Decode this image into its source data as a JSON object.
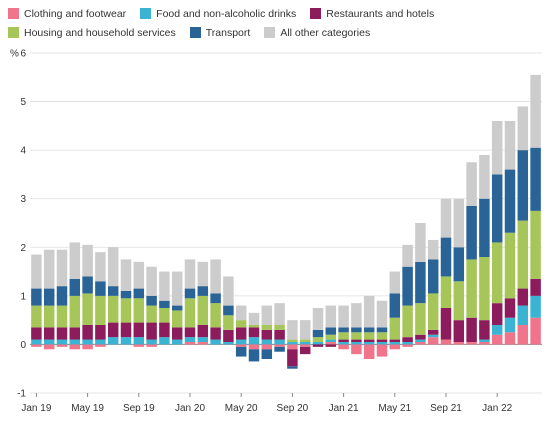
{
  "chart_data": {
    "type": "bar",
    "stacked": true,
    "ylabel": "%",
    "ylim": [
      -1,
      6
    ],
    "yticks": [
      "-1",
      "0",
      "1",
      "2",
      "3",
      "4",
      "5",
      "6"
    ],
    "xtick_labels": [
      {
        "index": 0,
        "label": "Jan 19"
      },
      {
        "index": 4,
        "label": "May 19"
      },
      {
        "index": 8,
        "label": "Sep 19"
      },
      {
        "index": 12,
        "label": "Jan 20"
      },
      {
        "index": 16,
        "label": "May 20"
      },
      {
        "index": 20,
        "label": "Sep 20"
      },
      {
        "index": 24,
        "label": "Jan 21"
      },
      {
        "index": 28,
        "label": "May 21"
      },
      {
        "index": 32,
        "label": "Sep 21"
      },
      {
        "index": 36,
        "label": "Jan 22"
      }
    ],
    "grid": true,
    "legend_position": "top",
    "series": [
      {
        "name": "Clothing and footwear",
        "color": "#f0758a",
        "values": [
          -0.05,
          -0.1,
          -0.05,
          -0.1,
          -0.1,
          -0.05,
          0.0,
          0.0,
          -0.05,
          -0.05,
          0.0,
          0.0,
          0.05,
          0.05,
          0.0,
          0.0,
          -0.05,
          -0.1,
          -0.1,
          -0.05,
          -0.1,
          -0.05,
          0.0,
          0.05,
          -0.1,
          -0.2,
          -0.3,
          -0.25,
          -0.1,
          -0.05,
          0.05,
          0.15,
          0.1,
          0.05,
          0.05,
          0.05,
          0.2,
          0.25,
          0.4,
          0.55
        ]
      },
      {
        "name": "Food and non-alcoholic drinks",
        "color": "#3bb3d3",
        "values": [
          0.1,
          0.1,
          0.1,
          0.1,
          0.1,
          0.1,
          0.15,
          0.15,
          0.15,
          0.1,
          0.15,
          0.1,
          0.1,
          0.1,
          0.1,
          0.05,
          0.1,
          0.15,
          0.1,
          0.1,
          0.05,
          0.05,
          0.05,
          0.05,
          0.05,
          0.05,
          0.05,
          0.05,
          0.05,
          0.05,
          0.05,
          0.05,
          0.0,
          0.0,
          0.0,
          0.05,
          0.2,
          0.3,
          0.4,
          0.45
        ]
      },
      {
        "name": "Restaurants and hotels",
        "color": "#8c1c5c",
        "values": [
          0.25,
          0.25,
          0.25,
          0.25,
          0.3,
          0.3,
          0.3,
          0.3,
          0.3,
          0.35,
          0.3,
          0.25,
          0.2,
          0.25,
          0.25,
          0.25,
          0.25,
          0.2,
          0.2,
          0.2,
          -0.35,
          -0.15,
          -0.05,
          -0.05,
          0.05,
          0.05,
          0.05,
          0.05,
          0.05,
          0.1,
          0.1,
          0.1,
          0.65,
          0.45,
          0.5,
          0.4,
          0.45,
          0.4,
          0.35,
          0.35
        ]
      },
      {
        "name": "Housing and household services",
        "color": "#a7c65a",
        "values": [
          0.45,
          0.45,
          0.45,
          0.65,
          0.65,
          0.6,
          0.55,
          0.5,
          0.5,
          0.35,
          0.3,
          0.35,
          0.6,
          0.6,
          0.5,
          0.3,
          0.15,
          0.05,
          0.1,
          0.1,
          0.05,
          0.05,
          0.1,
          0.1,
          0.15,
          0.15,
          0.15,
          0.15,
          0.45,
          0.65,
          0.65,
          0.75,
          0.65,
          0.8,
          1.2,
          1.3,
          1.25,
          1.35,
          1.4,
          1.4
        ]
      },
      {
        "name": "Transport",
        "color": "#2a6496",
        "values": [
          0.35,
          0.35,
          0.4,
          0.35,
          0.35,
          0.3,
          0.2,
          0.15,
          0.2,
          0.2,
          0.15,
          0.1,
          0.2,
          0.2,
          0.2,
          0.2,
          -0.2,
          -0.25,
          -0.2,
          -0.1,
          -0.05,
          0.0,
          0.15,
          0.15,
          0.1,
          0.1,
          0.1,
          0.1,
          0.5,
          0.8,
          0.85,
          0.7,
          0.8,
          0.7,
          1.1,
          1.2,
          1.4,
          1.3,
          1.45,
          1.3
        ]
      },
      {
        "name": "All other categories",
        "color": "#cccccc",
        "values": [
          0.7,
          0.8,
          0.75,
          0.75,
          0.65,
          0.6,
          0.8,
          0.65,
          0.55,
          0.6,
          0.6,
          0.7,
          0.6,
          0.5,
          0.7,
          0.6,
          0.3,
          0.25,
          0.4,
          0.45,
          0.4,
          0.4,
          0.45,
          0.45,
          0.45,
          0.5,
          0.65,
          0.55,
          0.45,
          0.45,
          0.8,
          0.4,
          0.8,
          1.0,
          0.9,
          0.9,
          1.1,
          1.0,
          0.9,
          1.5
        ]
      }
    ]
  }
}
